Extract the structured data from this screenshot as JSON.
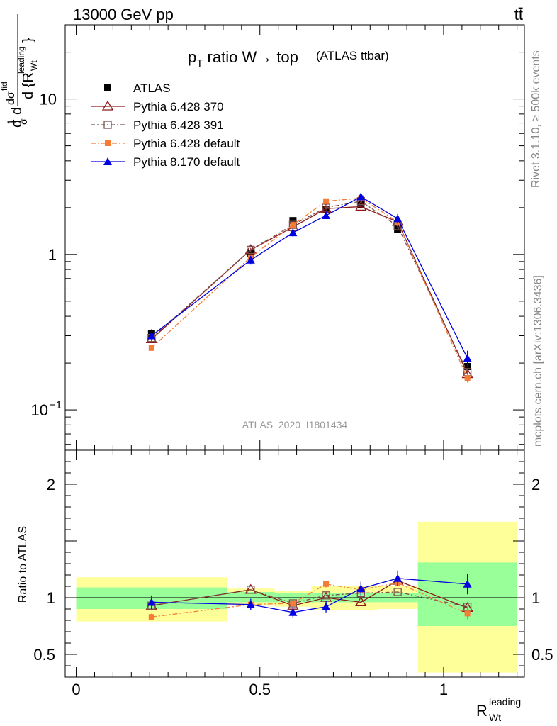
{
  "header": {
    "energy_label": "13000 GeV pp",
    "process_label": "tt̄",
    "side_rivet": "Rivet 3.1.10, ≥ 500k events",
    "side_mcplots": "mcplots.cern.ch [arXiv:1306.3436]"
  },
  "chart_data": [
    {
      "type": "line",
      "title_main": "p",
      "title_sub": "T",
      "title_rest": " ratio W→ top",
      "title_small": "(ATLAS ttbar)",
      "ylabel": "d σ / d{R_Wt^leading}",
      "xlabel": "R_Wt^leading",
      "watermark": "ATLAS_2020_I1801434",
      "yscale": "log",
      "ylim": [
        0.055,
        30
      ],
      "xlim": [
        -0.03,
        1.22
      ],
      "yticks": [
        {
          "v": 0.1,
          "label": "10",
          "sup": "−1"
        },
        {
          "v": 1,
          "label": "1",
          "sup": ""
        },
        {
          "v": 10,
          "label": "10",
          "sup": ""
        }
      ],
      "series": [
        {
          "name": "ATLAS",
          "color": "#000000",
          "marker": "square",
          "dash": "none",
          "x": [
            0.205,
            0.475,
            0.59,
            0.68,
            0.775,
            0.875,
            1.065
          ],
          "y": [
            0.31,
            1.02,
            1.65,
            1.95,
            2.1,
            1.45,
            0.19
          ],
          "err": [
            0.02,
            0.05,
            0.07,
            0.08,
            0.09,
            0.07,
            0.015
          ]
        },
        {
          "name": "Pythia 6.428 370",
          "color": "#8b1a1a",
          "marker": "triangle-open",
          "dash": "none",
          "x": [
            0.205,
            0.475,
            0.59,
            0.68,
            0.775,
            0.875,
            1.065
          ],
          "y": [
            0.285,
            1.07,
            1.5,
            1.97,
            2.03,
            1.62,
            0.17
          ],
          "err": [
            0.01,
            0.03,
            0.04,
            0.05,
            0.06,
            0.05,
            0.01
          ]
        },
        {
          "name": "Pythia 6.428 391",
          "color": "#7a5050",
          "marker": "square-open",
          "dash": "6,3,2,3",
          "x": [
            0.205,
            0.475,
            0.59,
            0.68,
            0.775,
            0.875,
            1.065
          ],
          "y": [
            0.29,
            1.07,
            1.55,
            2.0,
            2.2,
            1.52,
            0.175
          ],
          "err": [
            0.01,
            0.03,
            0.04,
            0.05,
            0.06,
            0.05,
            0.01
          ]
        },
        {
          "name": "Pythia 6.428 default",
          "color": "#f47c36",
          "marker": "square-small",
          "dash": "7,3,2,3",
          "x": [
            0.205,
            0.475,
            0.59,
            0.68,
            0.775,
            0.875,
            1.065
          ],
          "y": [
            0.25,
            0.96,
            1.55,
            2.2,
            2.3,
            1.62,
            0.16
          ],
          "err": [
            0.01,
            0.03,
            0.04,
            0.06,
            0.06,
            0.05,
            0.01
          ]
        },
        {
          "name": "Pythia 8.170 default",
          "color": "#0000e0",
          "marker": "triangle",
          "dash": "none",
          "x": [
            0.205,
            0.475,
            0.59,
            0.68,
            0.775,
            0.875,
            1.065
          ],
          "y": [
            0.3,
            0.92,
            1.38,
            1.78,
            2.35,
            1.7,
            0.215
          ],
          "err": [
            0.015,
            0.06,
            0.08,
            0.09,
            0.13,
            0.12,
            0.025
          ]
        }
      ]
    },
    {
      "type": "line",
      "ylabel": "Ratio to ATLAS",
      "xlabel": "R_Wt^leading",
      "yscale": "linear",
      "ylim": [
        0.3,
        2.3
      ],
      "xlim": [
        -0.03,
        1.22
      ],
      "xticks": [
        {
          "v": 0,
          "label": "0"
        },
        {
          "v": 0.5,
          "label": "0.5"
        },
        {
          "v": 1,
          "label": "1"
        }
      ],
      "yticks": [
        {
          "v": 0.5,
          "label": "0.5"
        },
        {
          "v": 1,
          "label": "1"
        },
        {
          "v": 2,
          "label": "2"
        }
      ],
      "bands": [
        {
          "x0": 0.0,
          "x1": 0.41,
          "y_lo": 0.9,
          "y_hi": 1.09,
          "y_lo2": 0.79,
          "y_hi2": 1.18
        },
        {
          "x0": 0.41,
          "x1": 0.54,
          "y_lo": 0.96,
          "y_hi": 1.05,
          "y_lo2": 0.93,
          "y_hi2": 1.08
        },
        {
          "x0": 0.54,
          "x1": 0.64,
          "y_lo": 0.96,
          "y_hi": 1.04,
          "y_lo2": 0.92,
          "y_hi2": 1.06
        },
        {
          "x0": 0.64,
          "x1": 0.82,
          "y_lo": 0.96,
          "y_hi": 1.04,
          "y_lo2": 0.89,
          "y_hi2": 1.1
        },
        {
          "x0": 0.82,
          "x1": 0.93,
          "y_lo": 0.96,
          "y_hi": 1.04,
          "y_lo2": 0.9,
          "y_hi2": 1.1
        },
        {
          "x0": 0.93,
          "x1": 1.2,
          "y_lo": 0.75,
          "y_hi": 1.31,
          "y_lo2": 0.34,
          "y_hi2": 1.67
        }
      ],
      "series": [
        {
          "name": "Pythia 6.428 370",
          "color": "#8b1a1a",
          "marker": "triangle-open",
          "dash": "none",
          "x": [
            0.205,
            0.475,
            0.59,
            0.68,
            0.775,
            0.875,
            1.065
          ],
          "y": [
            0.93,
            1.07,
            0.93,
            1.0,
            0.96,
            1.15,
            0.91
          ],
          "err": [
            0,
            0,
            0,
            0,
            0,
            0,
            0
          ]
        },
        {
          "name": "Pythia 6.428 391",
          "color": "#7a5050",
          "marker": "square-open",
          "dash": "6,3,2,3",
          "x": [
            0.205,
            0.475,
            0.59,
            0.68,
            0.775,
            0.875,
            1.065
          ],
          "y": [
            0.93,
            1.07,
            0.95,
            1.02,
            1.04,
            1.05,
            0.92
          ],
          "err": [
            0,
            0,
            0,
            0,
            0,
            0,
            0
          ]
        },
        {
          "name": "Pythia 6.428 default",
          "color": "#f47c36",
          "marker": "square-small",
          "dash": "7,3,2,3",
          "x": [
            0.205,
            0.475,
            0.59,
            0.68,
            0.775,
            0.875,
            1.065
          ],
          "y": [
            0.83,
            0.94,
            0.95,
            1.12,
            1.07,
            1.13,
            0.86
          ],
          "err": [
            0.03,
            0.03,
            0.03,
            0.03,
            0.03,
            0.03,
            0.05
          ]
        },
        {
          "name": "Pythia 8.170 default",
          "color": "#0000e0",
          "marker": "triangle",
          "dash": "none",
          "x": [
            0.205,
            0.475,
            0.59,
            0.68,
            0.775,
            0.875,
            1.065
          ],
          "y": [
            0.96,
            0.94,
            0.87,
            0.92,
            1.08,
            1.17,
            1.12
          ],
          "err": [
            0.06,
            0.05,
            0.05,
            0.05,
            0.06,
            0.07,
            0.09
          ]
        }
      ]
    }
  ]
}
